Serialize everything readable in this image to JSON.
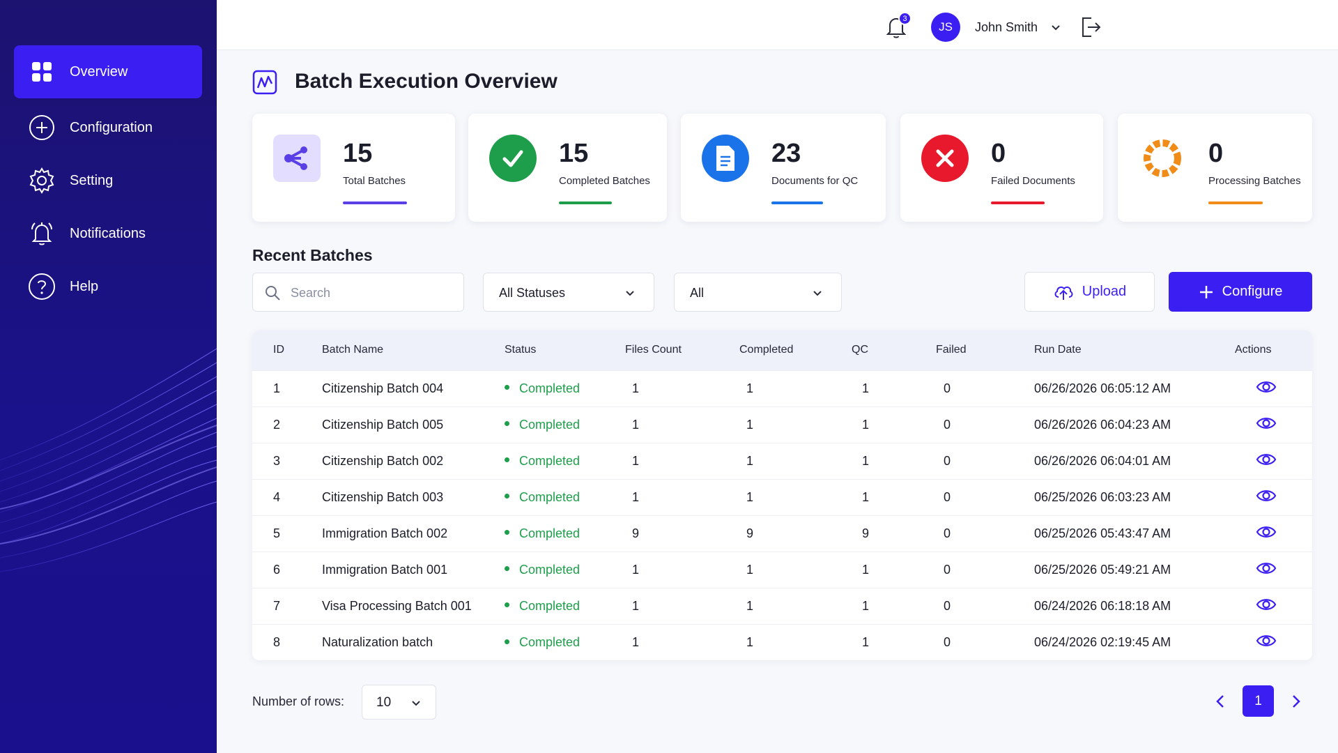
{
  "sidebar": {
    "items": [
      {
        "label": "Overview",
        "icon": "grid-icon",
        "active": true
      },
      {
        "label": "Configuration",
        "icon": "plus-circle-icon",
        "active": false
      },
      {
        "label": "Setting",
        "icon": "gear-icon",
        "active": false
      },
      {
        "label": "Notifications",
        "icon": "bell-icon",
        "active": false
      },
      {
        "label": "Help",
        "icon": "help-circle-icon",
        "active": false
      }
    ]
  },
  "header": {
    "notification_count": "3",
    "user_initials": "JS",
    "user_name": "John Smith"
  },
  "page": {
    "title": "Batch Execution Overview"
  },
  "stats": [
    {
      "value": "15",
      "label": "Total Batches",
      "color": "#5a3fe6",
      "icon": "share-nodes-icon"
    },
    {
      "value": "15",
      "label": "Completed Batches",
      "color": "#1e9e4a",
      "icon": "check-icon"
    },
    {
      "value": "23",
      "label": "Documents for QC",
      "color": "#1a73e8",
      "icon": "document-icon"
    },
    {
      "value": "0",
      "label": "Failed Documents",
      "color": "#e8192c",
      "icon": "x-icon"
    },
    {
      "value": "0",
      "label": "Processing Batches",
      "color": "#f28c18",
      "icon": "loader-icon"
    }
  ],
  "recent": {
    "title": "Recent Batches",
    "search_placeholder": "Search",
    "status_filter": "All Statuses",
    "type_filter": "All",
    "upload_label": "Upload",
    "configure_label": "Configure"
  },
  "table": {
    "columns": [
      "ID",
      "Batch Name",
      "Status",
      "Files Count",
      "Completed",
      "QC",
      "Failed",
      "Run Date",
      "Actions"
    ],
    "rows": [
      {
        "id": "1",
        "name": "Citizenship Batch 004",
        "status": "Completed",
        "files": "1",
        "completed": "1",
        "qc": "1",
        "failed": "0",
        "run_date": "06/26/2026 06:05:12 AM"
      },
      {
        "id": "2",
        "name": "Citizenship Batch 005",
        "status": "Completed",
        "files": "1",
        "completed": "1",
        "qc": "1",
        "failed": "0",
        "run_date": "06/26/2026 06:04:23 AM"
      },
      {
        "id": "3",
        "name": "Citizenship Batch 002",
        "status": "Completed",
        "files": "1",
        "completed": "1",
        "qc": "1",
        "failed": "0",
        "run_date": "06/26/2026 06:04:01 AM"
      },
      {
        "id": "4",
        "name": "Citizenship Batch 003",
        "status": "Completed",
        "files": "1",
        "completed": "1",
        "qc": "1",
        "failed": "0",
        "run_date": "06/25/2026 06:03:23 AM"
      },
      {
        "id": "5",
        "name": "Immigration Batch 002",
        "status": "Completed",
        "files": "9",
        "completed": "9",
        "qc": "9",
        "failed": "0",
        "run_date": "06/25/2026 05:43:47 AM"
      },
      {
        "id": "6",
        "name": "Immigration Batch 001",
        "status": "Completed",
        "files": "1",
        "completed": "1",
        "qc": "1",
        "failed": "0",
        "run_date": "06/25/2026 05:49:21 AM"
      },
      {
        "id": "7",
        "name": "Visa Processing Batch 001",
        "status": "Completed",
        "files": "1",
        "completed": "1",
        "qc": "1",
        "failed": "0",
        "run_date": "06/24/2026 06:18:18 AM"
      },
      {
        "id": "8",
        "name": "Naturalization batch",
        "status": "Completed",
        "files": "1",
        "completed": "1",
        "qc": "1",
        "failed": "0",
        "run_date": "06/24/2026 02:19:45 AM"
      }
    ]
  },
  "footer": {
    "rows_label": "Number of rows:",
    "rows_value": "10",
    "current_page": "1"
  },
  "colors": {
    "accent": "#3b1ff2",
    "sidebar": "#1a128a",
    "success": "#1e9e4a"
  }
}
